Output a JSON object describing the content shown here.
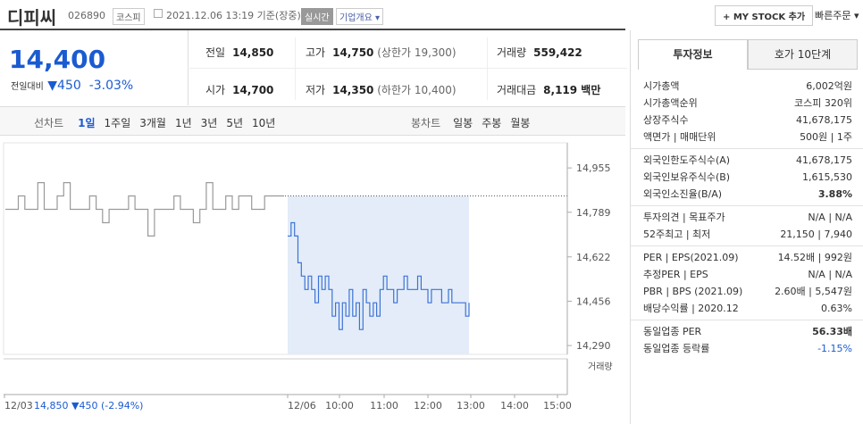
{
  "header": {
    "name": "디피씨",
    "code": "026890",
    "market": "코스피",
    "datetime": "2021.12.06 13:19 기준(장중)",
    "realtime": "실시간",
    "overview": "기업개요",
    "mystock": "+ MY STOCK 추가",
    "quick_order": "빠른주문"
  },
  "summary": {
    "price": "14,400",
    "change_label": "전일대비",
    "change_arrow": "▼",
    "change": "450",
    "change_pct": "-3.03%"
  },
  "table": {
    "rows": [
      [
        {
          "label": "전일",
          "value": "14,850"
        },
        {
          "label": "고가",
          "value": "14,750",
          "sub_label": "(상한가",
          "sub_value": "19,300)"
        },
        {
          "label": "거래량",
          "value": "559,422"
        }
      ],
      [
        {
          "label": "시가",
          "value": "14,700"
        },
        {
          "label": "저가",
          "value": "14,350",
          "sub_label": "(하한가",
          "sub_value": "10,400)"
        },
        {
          "label": "거래대금",
          "value": "8,119 백만"
        }
      ]
    ]
  },
  "tabs": {
    "line_label": "선차트",
    "line": [
      "1일",
      "1주일",
      "3개월",
      "1년",
      "3년",
      "5년",
      "10년"
    ],
    "candle_label": "봉차트",
    "candle": [
      "일봉",
      "주봉",
      "월봉"
    ]
  },
  "chart_data": {
    "type": "line",
    "series": [
      {
        "color": "#9a9a9a",
        "values": [
          14800,
          14800,
          14850,
          14800,
          14800,
          14900,
          14800,
          14800,
          14850,
          14900,
          14800,
          14800,
          14800,
          14850,
          14800,
          14750,
          14800,
          14800,
          14800,
          14850,
          14800,
          14800,
          14700,
          14800,
          14800,
          14800,
          14850,
          14800,
          14800,
          14750,
          14800,
          14900,
          14800,
          14800,
          14850,
          14800,
          14850,
          14850,
          14800,
          14800,
          14850,
          14850,
          14850,
          14850
        ]
      },
      {
        "color": "#3d73d6",
        "values": [
          14700,
          14750,
          14700,
          14600,
          14550,
          14500,
          14550,
          14500,
          14450,
          14550,
          14500,
          14550,
          14500,
          14400,
          14450,
          14350,
          14450,
          14400,
          14500,
          14400,
          14450,
          14350,
          14500,
          14450,
          14400,
          14450,
          14400,
          14500,
          14550,
          14500,
          14500,
          14450,
          14500,
          14500,
          14550,
          14500,
          14500,
          14500,
          14550,
          14500,
          14500,
          14450,
          14500,
          14500,
          14500,
          14450,
          14450,
          14500,
          14450,
          14450,
          14450,
          14450,
          14400,
          14450
        ]
      }
    ],
    "prev_close": 14850,
    "ylim": [
      14257,
      15049
    ],
    "yticks": [
      {
        "value": 14955,
        "label": "14,955"
      },
      {
        "value": 14789,
        "label": "14,789"
      },
      {
        "value": 14622,
        "label": "14,622"
      },
      {
        "value": 14456,
        "label": "14,456"
      },
      {
        "value": 14290,
        "label": "14,290"
      }
    ],
    "x_labels": [
      "12/03",
      "12/06",
      "10:00",
      "11:00",
      "12:00",
      "13:00",
      "14:00",
      "15:00"
    ],
    "prev_day_note": "14,850 ▼450 (-2.94%)",
    "volume_label": "거래량"
  },
  "sidebar": {
    "tabs": [
      "투자정보",
      "호가 10단계"
    ],
    "groups": [
      [
        [
          "시가총액",
          "6,002억원"
        ],
        [
          "시가총액순위",
          "코스피 320위"
        ],
        [
          "상장주식수",
          "41,678,175"
        ],
        [
          "액면가 | 매매단위",
          "500원 | 1주"
        ]
      ],
      [
        [
          "외국인한도주식수(A)",
          "41,678,175"
        ],
        [
          "외국인보유주식수(B)",
          "1,615,530"
        ],
        [
          "외국인소진율(B/A)",
          "3.88%"
        ]
      ],
      [
        [
          "투자의견 | 목표주가",
          "N/A | N/A"
        ],
        [
          "52주최고 | 최저",
          "21,150 | 7,940"
        ]
      ],
      [
        [
          "PER | EPS(2021.09)",
          "14.52배 | 992원"
        ],
        [
          "추정PER | EPS",
          "N/A | N/A"
        ],
        [
          "PBR | BPS (2021.09)",
          "2.60배 | 5,547원"
        ],
        [
          "배당수익률 | 2020.12",
          "0.63%"
        ]
      ],
      [
        [
          "동일업종 PER",
          "56.33배"
        ],
        [
          "동일업종 등락률",
          "-1.15%"
        ]
      ]
    ]
  }
}
